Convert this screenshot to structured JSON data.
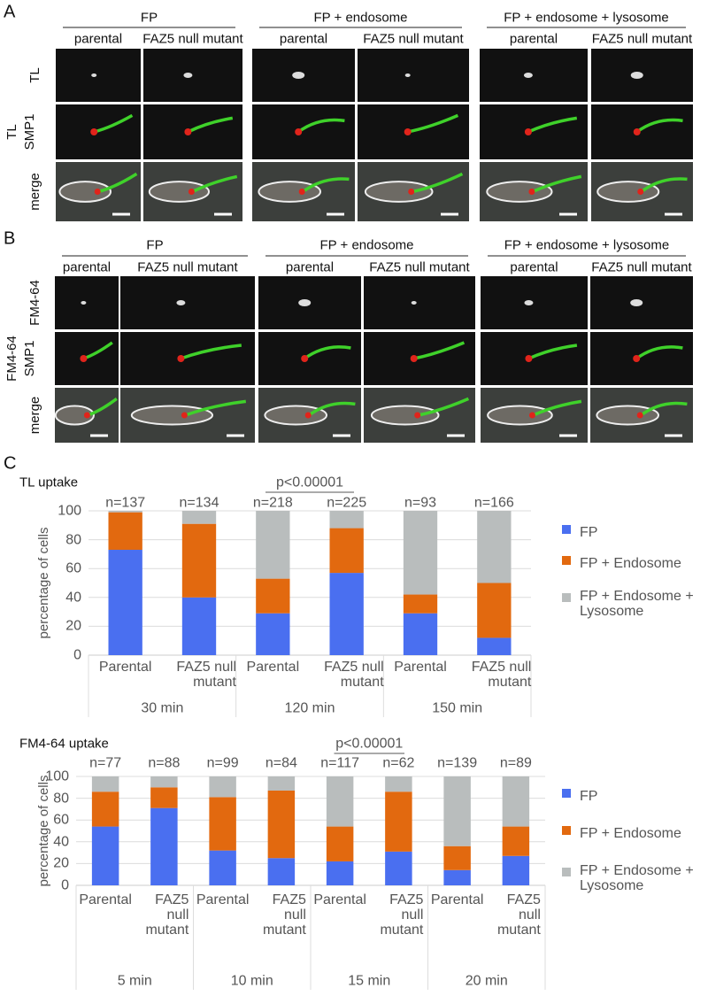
{
  "panels": [
    {
      "label": "A",
      "groups": [
        {
          "title": "FP",
          "columns": [
            "parental",
            "FAZ5 null mutant"
          ]
        },
        {
          "title": "FP + endosome",
          "columns": [
            "parental",
            "FAZ5 null mutant"
          ]
        },
        {
          "title": "FP + endosome + lysosome",
          "columns": [
            "parental",
            "FAZ5 null mutant"
          ]
        }
      ],
      "rows": [
        [
          "TL"
        ],
        [
          "TL",
          "SMP1"
        ],
        [
          "merge"
        ]
      ]
    },
    {
      "label": "B",
      "groups": [
        {
          "title": "FP",
          "columns": [
            "parental",
            "FAZ5 null mutant"
          ]
        },
        {
          "title": "FP + endosome",
          "columns": [
            "parental",
            "FAZ5 null mutant"
          ]
        },
        {
          "title": "FP + endosome + lysosome",
          "columns": [
            "parental",
            "FAZ5 null mutant"
          ]
        }
      ],
      "rows": [
        [
          "FM4-64"
        ],
        [
          "FM4-64",
          "SMP1"
        ],
        [
          "merge"
        ]
      ]
    },
    {
      "label": "C"
    }
  ],
  "chart_data": [
    {
      "type": "bar",
      "stacked": true,
      "title": "TL uptake",
      "y_label": "percentage of cells",
      "groups": [
        {
          "label": "30 min",
          "categories": [
            "Parental",
            "FAZ5 null mutant"
          ]
        },
        {
          "label": "120 min",
          "categories": [
            "Parental",
            "FAZ5 null mutant"
          ],
          "annotation": "p<0.00001"
        },
        {
          "label": "150 min",
          "categories": [
            "Parental",
            "FAZ5 null mutant"
          ]
        }
      ],
      "n_labels": [
        "n=137",
        "n=134",
        "n=218",
        "n=225",
        "n=93",
        "n=166"
      ],
      "series": [
        {
          "name": "FP",
          "color": "#4a6ff0",
          "values": [
            73,
            40,
            29,
            57,
            29,
            12
          ]
        },
        {
          "name": "FP + Endosome",
          "color": "#e2690f",
          "values": [
            26,
            51,
            24,
            31,
            13,
            38
          ]
        },
        {
          "name": "FP + Endosome + Lysosome",
          "color": "#b9bdbd",
          "values": [
            1,
            9,
            47,
            12,
            58,
            50
          ]
        }
      ],
      "ylim": [
        0,
        100
      ],
      "yticks": [
        0,
        20,
        40,
        60,
        80,
        100
      ],
      "grid": true
    },
    {
      "type": "bar",
      "stacked": true,
      "title": "FM4-64 uptake",
      "y_label": "percentage of cells",
      "groups": [
        {
          "label": "5 min",
          "categories": [
            "Parental",
            "FAZ5 null mutant"
          ]
        },
        {
          "label": "10 min",
          "categories": [
            "Parental",
            "FAZ5 null mutant"
          ]
        },
        {
          "label": "15 min",
          "categories": [
            "Parental",
            "FAZ5 null mutant"
          ],
          "annotation": "p<0.00001"
        },
        {
          "label": "20 min",
          "categories": [
            "Parental",
            "FAZ5 null mutant"
          ]
        }
      ],
      "n_labels": [
        "n=77",
        "n=88",
        "n=99",
        "n=84",
        "n=117",
        "n=62",
        "n=139",
        "n=89"
      ],
      "series": [
        {
          "name": "FP",
          "color": "#4a6ff0",
          "values": [
            54,
            71,
            32,
            25,
            22,
            31,
            14,
            27
          ]
        },
        {
          "name": "FP + Endosome",
          "color": "#e2690f",
          "values": [
            32,
            19,
            49,
            62,
            32,
            55,
            22,
            27
          ]
        },
        {
          "name": "FP + Endosome + Lysosome",
          "color": "#b9bdbd",
          "values": [
            14,
            10,
            19,
            13,
            46,
            14,
            64,
            46
          ]
        }
      ],
      "ylim": [
        0,
        100
      ],
      "yticks": [
        0,
        20,
        40,
        60,
        80,
        100
      ],
      "grid": true
    }
  ]
}
